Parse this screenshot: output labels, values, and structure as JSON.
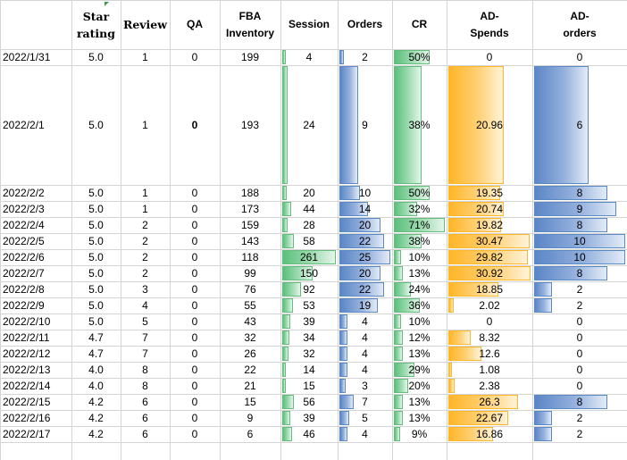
{
  "headers": {
    "date": "",
    "star": [
      "Star",
      "rating"
    ],
    "review": [
      "Review"
    ],
    "qa": [
      "QA"
    ],
    "fba": [
      "FBA",
      "Inventory"
    ],
    "session": [
      "Session"
    ],
    "orders": [
      "Orders"
    ],
    "cr": [
      "CR"
    ],
    "ad_spends": [
      "AD-",
      "Spends"
    ],
    "ad_orders": [
      "AD-",
      "orders"
    ]
  },
  "bar_colors": {
    "session": "#63be7b",
    "orders": "#5a8ac6",
    "cr": "#63be7b",
    "ad_spends": "#ffb628",
    "ad_orders": "#5a8ac6"
  },
  "rows": [
    {
      "date": "2022/1/31",
      "star": "5.0",
      "review": "1",
      "qa": "0",
      "fba": "199",
      "session": "4",
      "orders": "2",
      "cr": "50%",
      "ad_spends": "0",
      "ad_orders": "0"
    },
    {
      "date": "2022/2/1",
      "star": "5.0",
      "review": "1",
      "qa": "0",
      "fba": "193",
      "session": "24",
      "orders": "9",
      "cr": "38%",
      "ad_spends": "20.96",
      "ad_orders": "6"
    },
    {
      "date": "2022/2/2",
      "star": "5.0",
      "review": "1",
      "qa": "0",
      "fba": "188",
      "session": "20",
      "orders": "10",
      "cr": "50%",
      "ad_spends": "19.35",
      "ad_orders": "8"
    },
    {
      "date": "2022/2/3",
      "star": "5.0",
      "review": "1",
      "qa": "0",
      "fba": "173",
      "session": "44",
      "orders": "14",
      "cr": "32%",
      "ad_spends": "20.74",
      "ad_orders": "9"
    },
    {
      "date": "2022/2/4",
      "star": "5.0",
      "review": "2",
      "qa": "0",
      "fba": "159",
      "session": "28",
      "orders": "20",
      "cr": "71%",
      "ad_spends": "19.82",
      "ad_orders": "8"
    },
    {
      "date": "2022/2/5",
      "star": "5.0",
      "review": "2",
      "qa": "0",
      "fba": "143",
      "session": "58",
      "orders": "22",
      "cr": "38%",
      "ad_spends": "30.47",
      "ad_orders": "10"
    },
    {
      "date": "2022/2/6",
      "star": "5.0",
      "review": "2",
      "qa": "0",
      "fba": "118",
      "session": "261",
      "orders": "25",
      "cr": "10%",
      "ad_spends": "29.82",
      "ad_orders": "10"
    },
    {
      "date": "2022/2/7",
      "star": "5.0",
      "review": "2",
      "qa": "0",
      "fba": "99",
      "session": "150",
      "orders": "20",
      "cr": "13%",
      "ad_spends": "30.92",
      "ad_orders": "8"
    },
    {
      "date": "2022/2/8",
      "star": "5.0",
      "review": "3",
      "qa": "0",
      "fba": "76",
      "session": "92",
      "orders": "22",
      "cr": "24%",
      "ad_spends": "18.85",
      "ad_orders": "2"
    },
    {
      "date": "2022/2/9",
      "star": "5.0",
      "review": "4",
      "qa": "0",
      "fba": "55",
      "session": "53",
      "orders": "19",
      "cr": "36%",
      "ad_spends": "2.02",
      "ad_orders": "2"
    },
    {
      "date": "2022/2/10",
      "star": "5.0",
      "review": "5",
      "qa": "0",
      "fba": "43",
      "session": "39",
      "orders": "4",
      "cr": "10%",
      "ad_spends": "0",
      "ad_orders": "0"
    },
    {
      "date": "2022/2/11",
      "star": "4.7",
      "review": "7",
      "qa": "0",
      "fba": "32",
      "session": "34",
      "orders": "4",
      "cr": "12%",
      "ad_spends": "8.32",
      "ad_orders": "0"
    },
    {
      "date": "2022/2/12",
      "star": "4.7",
      "review": "7",
      "qa": "0",
      "fba": "26",
      "session": "32",
      "orders": "4",
      "cr": "13%",
      "ad_spends": "12.6",
      "ad_orders": "0"
    },
    {
      "date": "2022/2/13",
      "star": "4.0",
      "review": "8",
      "qa": "0",
      "fba": "22",
      "session": "14",
      "orders": "4",
      "cr": "29%",
      "ad_spends": "1.08",
      "ad_orders": "0"
    },
    {
      "date": "2022/2/14",
      "star": "4.0",
      "review": "8",
      "qa": "0",
      "fba": "21",
      "session": "15",
      "orders": "3",
      "cr": "20%",
      "ad_spends": "2.38",
      "ad_orders": "0"
    },
    {
      "date": "2022/2/15",
      "star": "4.2",
      "review": "6",
      "qa": "0",
      "fba": "15",
      "session": "56",
      "orders": "7",
      "cr": "13%",
      "ad_spends": "26.3",
      "ad_orders": "8"
    },
    {
      "date": "2022/2/16",
      "star": "4.2",
      "review": "6",
      "qa": "0",
      "fba": "9",
      "session": "39",
      "orders": "5",
      "cr": "13%",
      "ad_spends": "22.67",
      "ad_orders": "2"
    },
    {
      "date": "2022/2/17",
      "star": "4.2",
      "review": "6",
      "qa": "0",
      "fba": "6",
      "session": "46",
      "orders": "4",
      "cr": "9%",
      "ad_spends": "16.86",
      "ad_orders": "2"
    }
  ]
}
